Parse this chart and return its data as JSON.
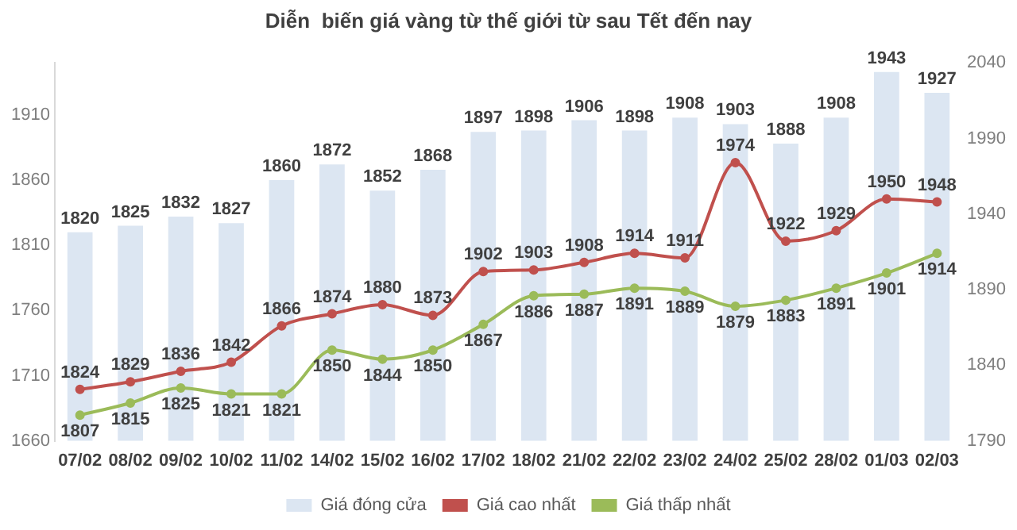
{
  "chart_data": {
    "type": "bar",
    "title": "Diễn  biến giá vàng từ thế giới từ sau Tết đến nay",
    "categories": [
      "07/02",
      "08/02",
      "09/02",
      "10/02",
      "11/02",
      "14/02",
      "15/02",
      "16/02",
      "17/02",
      "18/02",
      "21/02",
      "22/02",
      "23/02",
      "24/02",
      "25/02",
      "28/02",
      "01/03",
      "02/03"
    ],
    "series": [
      {
        "name": "Giá đóng cửa",
        "color": "#dce6f2",
        "values": [
          1820,
          1825,
          1832,
          1827,
          1860,
          1872,
          1852,
          1868,
          1897,
          1898,
          1906,
          1898,
          1908,
          1903,
          1888,
          1908,
          1943,
          1927
        ]
      },
      {
        "name": "Giá cao nhất",
        "type": "line",
        "axis": "y2",
        "color": "#c0504d",
        "values": [
          1824,
          1829,
          1836,
          1842,
          1866,
          1874,
          1880,
          1873,
          1902,
          1903,
          1908,
          1914,
          1911,
          1974,
          1922,
          1929,
          1950,
          1948
        ]
      },
      {
        "name": "Giá thấp nhất",
        "type": "line",
        "axis": "y2",
        "color": "#9bbb59",
        "values": [
          1807,
          1815,
          1825,
          1821,
          1821,
          1850,
          1844,
          1850,
          1867,
          1886,
          1887,
          1891,
          1889,
          1879,
          1883,
          1891,
          1901,
          1914
        ]
      }
    ],
    "ylim": [
      1660,
      1950
    ],
    "yticks": [
      1660,
      1710,
      1760,
      1810,
      1860,
      1910
    ],
    "y2lim": [
      1790,
      2040
    ],
    "y2ticks": [
      1790,
      1840,
      1890,
      1940,
      1990,
      2040
    ],
    "data_labels": true,
    "legend": "bottom",
    "grid": false,
    "marker": "circle"
  }
}
